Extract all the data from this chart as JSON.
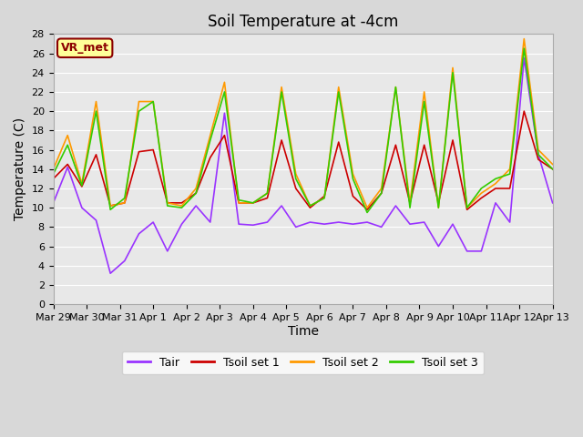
{
  "title": "Soil Temperature at -4cm",
  "xlabel": "Time",
  "ylabel": "Temperature (C)",
  "ylim": [
    0,
    28
  ],
  "yticks": [
    0,
    2,
    4,
    6,
    8,
    10,
    12,
    14,
    16,
    18,
    20,
    22,
    24,
    26,
    28
  ],
  "xtick_labels": [
    "Mar 29",
    "Mar 30",
    "Mar 31",
    "Apr 1",
    "Apr 2",
    "Apr 3",
    "Apr 4",
    "Apr 5",
    "Apr 6",
    "Apr 7",
    "Apr 8",
    "Apr 9",
    "Apr 10",
    "Apr 11",
    "Apr 12",
    "Apr 13"
  ],
  "fig_bg_color": "#d8d8d8",
  "plot_bg_color": "#e8e8e8",
  "legend_label_box": "VR_met",
  "legend_box_facecolor": "#ffff99",
  "legend_box_edgecolor": "#8B0000",
  "legend_box_textcolor": "#8B0000",
  "grid_color": "#ffffff",
  "series": {
    "Tair": {
      "color": "#9933FF",
      "linewidth": 1.2,
      "values": [
        10.5,
        14.2,
        10.0,
        8.7,
        3.2,
        4.5,
        7.3,
        8.5,
        5.5,
        8.3,
        10.2,
        8.5,
        19.8,
        8.3,
        8.2,
        8.5,
        10.2,
        8.0,
        8.5,
        8.3,
        8.5,
        8.3,
        8.5,
        8.0,
        10.2,
        8.3,
        8.5,
        6.0,
        8.3,
        5.5,
        5.5,
        10.5,
        8.5,
        25.5,
        15.5,
        10.5
      ]
    },
    "Tsoil set 1": {
      "color": "#CC0000",
      "linewidth": 1.2,
      "values": [
        13.0,
        14.5,
        12.2,
        15.5,
        10.2,
        10.5,
        15.8,
        16.0,
        10.5,
        10.5,
        11.5,
        15.2,
        17.5,
        10.5,
        10.5,
        11.0,
        17.0,
        12.0,
        10.0,
        11.2,
        16.8,
        11.2,
        9.8,
        11.5,
        16.5,
        10.5,
        16.5,
        10.5,
        17.0,
        9.8,
        11.0,
        12.0,
        12.0,
        20.0,
        15.0,
        14.0
      ]
    },
    "Tsoil set 2": {
      "color": "#FF9900",
      "linewidth": 1.2,
      "values": [
        14.0,
        17.5,
        12.5,
        21.0,
        10.2,
        10.5,
        21.0,
        21.0,
        10.5,
        10.2,
        12.0,
        17.5,
        23.0,
        10.5,
        10.5,
        11.5,
        22.5,
        13.5,
        10.2,
        11.0,
        22.5,
        13.5,
        10.0,
        12.0,
        22.5,
        10.5,
        22.0,
        10.0,
        24.5,
        10.0,
        11.5,
        12.5,
        14.0,
        27.5,
        16.0,
        14.5
      ]
    },
    "Tsoil set 3": {
      "color": "#33CC00",
      "linewidth": 1.2,
      "values": [
        13.5,
        16.5,
        12.3,
        20.0,
        9.8,
        11.0,
        20.0,
        21.0,
        10.2,
        10.0,
        11.5,
        17.0,
        22.0,
        10.8,
        10.5,
        11.5,
        22.0,
        13.0,
        10.2,
        11.0,
        22.0,
        13.0,
        9.5,
        11.5,
        22.5,
        10.0,
        21.0,
        10.0,
        24.0,
        10.0,
        12.0,
        13.0,
        13.5,
        26.5,
        15.5,
        14.0
      ]
    }
  },
  "title_fontsize": 12,
  "axis_label_fontsize": 10,
  "tick_fontsize": 8,
  "legend_fontsize": 9
}
